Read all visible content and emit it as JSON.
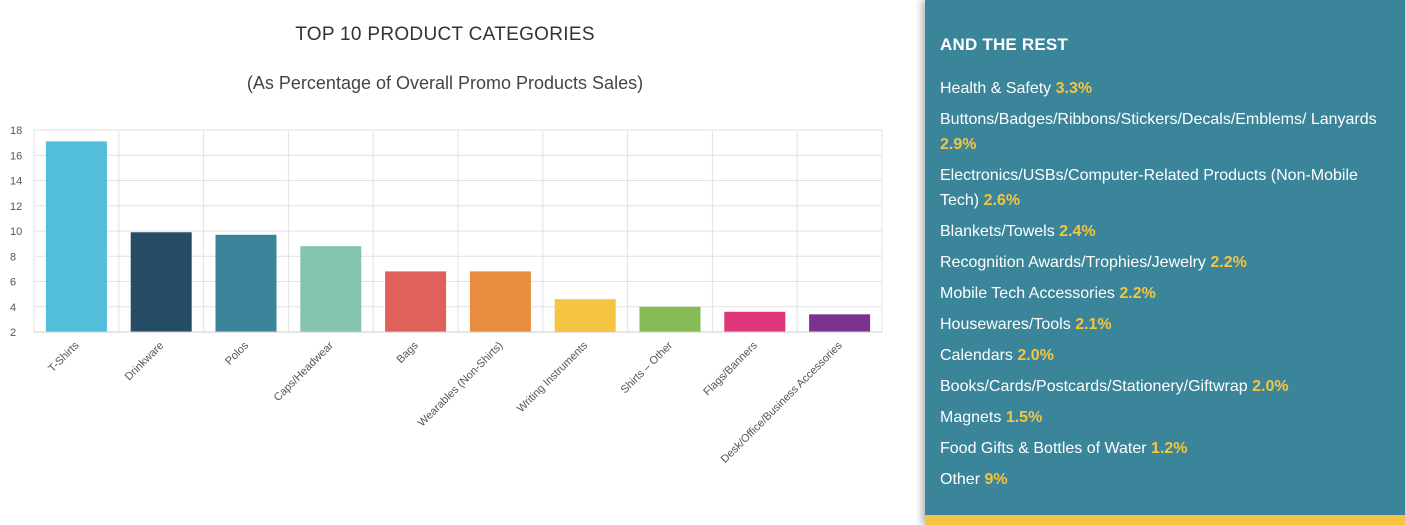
{
  "chart_data": {
    "type": "bar",
    "title": "TOP 10 PRODUCT CATEGORIES",
    "subtitle": "(As Percentage of Overall Promo Products Sales)",
    "categories": [
      "T-Shirts",
      "Drinkware",
      "Polos",
      "Caps/Headwear",
      "Bags",
      "Wearables (Non-Shirts)",
      "Writing Instruments",
      "Shirts – Other",
      "Flags/Banners",
      "Desk/Office/Business Accessories"
    ],
    "values": [
      17.1,
      9.9,
      9.7,
      8.8,
      6.8,
      6.8,
      4.6,
      4.0,
      3.6,
      3.4
    ],
    "colors": [
      "#52bedb",
      "#264d66",
      "#3a8599",
      "#85c5b0",
      "#e0605c",
      "#e88d40",
      "#f5c542",
      "#84bb57",
      "#e0367a",
      "#7a3490"
    ],
    "yticks": [
      2,
      4,
      6,
      8,
      10,
      12,
      14,
      16,
      18
    ],
    "ylim": [
      2,
      18
    ],
    "grid": true
  },
  "panel": {
    "heading": "AND THE REST",
    "items": [
      {
        "label": "Health & Safety",
        "value": "3.3%"
      },
      {
        "label": "Buttons/Badges/Ribbons/Stickers/Decals/Emblems/ Lanyards",
        "value": "2.9%"
      },
      {
        "label": "Electronics/USBs/Computer-Related Products (Non-Mobile Tech)",
        "value": "2.6%"
      },
      {
        "label": "Blankets/Towels",
        "value": "2.4%"
      },
      {
        "label": "Recognition Awards/Trophies/Jewelry",
        "value": "2.2%"
      },
      {
        "label": "Mobile Tech Accessories",
        "value": "2.2%"
      },
      {
        "label": "Housewares/Tools",
        "value": "2.1%"
      },
      {
        "label": "Calendars",
        "value": "2.0%"
      },
      {
        "label": "Books/Cards/Postcards/Stationery/Giftwrap",
        "value": "2.0%"
      },
      {
        "label": "Magnets",
        "value": "1.5%"
      },
      {
        "label": "Food Gifts & Bottles of Water",
        "value": "1.2%"
      },
      {
        "label": "Other",
        "value": "9%"
      }
    ]
  }
}
